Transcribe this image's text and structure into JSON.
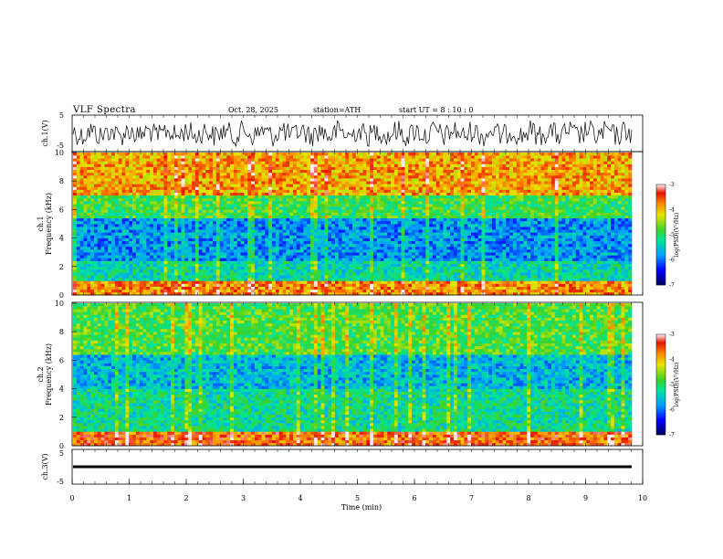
{
  "header": {
    "title": "VLF  Spectra",
    "date": "Oct. 28, 2025",
    "station": "station=ATH",
    "start": "start  UT  =   8  : 10 : 0"
  },
  "chart_data": [
    {
      "type": "line",
      "panel": "ch1-waveform",
      "ylabel": "ch.1(V)",
      "y_ticks": [
        "5",
        "-5"
      ],
      "ylim": [
        -5,
        5
      ],
      "series": [
        {
          "values": "dense noisy waveform, amplitude approx -4..4 V"
        }
      ]
    },
    {
      "type": "heatmap",
      "panel": "ch1-spectrogram",
      "ylabel_top": "ch.1",
      "ylabel": "Frequency  (kHz)",
      "y_ticks": [
        "0",
        "2",
        "4",
        "6",
        "8",
        "10"
      ],
      "ylim": [
        0,
        10
      ],
      "xlim": [
        0,
        10
      ],
      "colorbar": {
        "label": "log(PSD)(V²/Hz)",
        "ticks": [
          "-3",
          "-4",
          "-5",
          "-6",
          "-7"
        ],
        "range": [
          -7,
          -3
        ]
      },
      "bands": [
        {
          "from_khz": 0,
          "to_khz": 1,
          "level": -3.8
        },
        {
          "from_khz": 1,
          "to_khz": 2.5,
          "level": -5.3
        },
        {
          "from_khz": 2.5,
          "to_khz": 5.5,
          "level": -5.8
        },
        {
          "from_khz": 5.5,
          "to_khz": 7,
          "level": -4.9
        },
        {
          "from_khz": 7,
          "to_khz": 10,
          "level": -3.9
        }
      ]
    },
    {
      "type": "heatmap",
      "panel": "ch2-spectrogram",
      "ylabel_top": "ch.2",
      "ylabel": "Frequency  (kHz)",
      "y_ticks": [
        "0",
        "2",
        "4",
        "6",
        "8",
        "10"
      ],
      "ylim": [
        0,
        10
      ],
      "xlim": [
        0,
        10
      ],
      "colorbar": {
        "label": "log(PSD)(V²/Hz)",
        "ticks": [
          "-3",
          "-4",
          "-5",
          "-6",
          "-7"
        ],
        "range": [
          -7,
          -3
        ]
      },
      "bands": [
        {
          "from_khz": 0,
          "to_khz": 1,
          "level": -3.6
        },
        {
          "from_khz": 1,
          "to_khz": 4,
          "level": -5.2
        },
        {
          "from_khz": 4,
          "to_khz": 6.5,
          "level": -5.6
        },
        {
          "from_khz": 6.5,
          "to_khz": 10,
          "level": -4.8
        }
      ]
    },
    {
      "type": "line",
      "panel": "ch3-waveform",
      "ylabel": "ch.3(V)",
      "y_ticks": [
        "5",
        "-5"
      ],
      "ylim": [
        -5,
        5
      ],
      "xlabel": "Time  (min)",
      "x_ticks": [
        "0",
        "1",
        "2",
        "3",
        "4",
        "5",
        "6",
        "7",
        "8",
        "9",
        "10"
      ],
      "xlim": [
        0,
        10
      ],
      "series": [
        {
          "values": "flat trace near -1.2 V"
        }
      ]
    }
  ]
}
